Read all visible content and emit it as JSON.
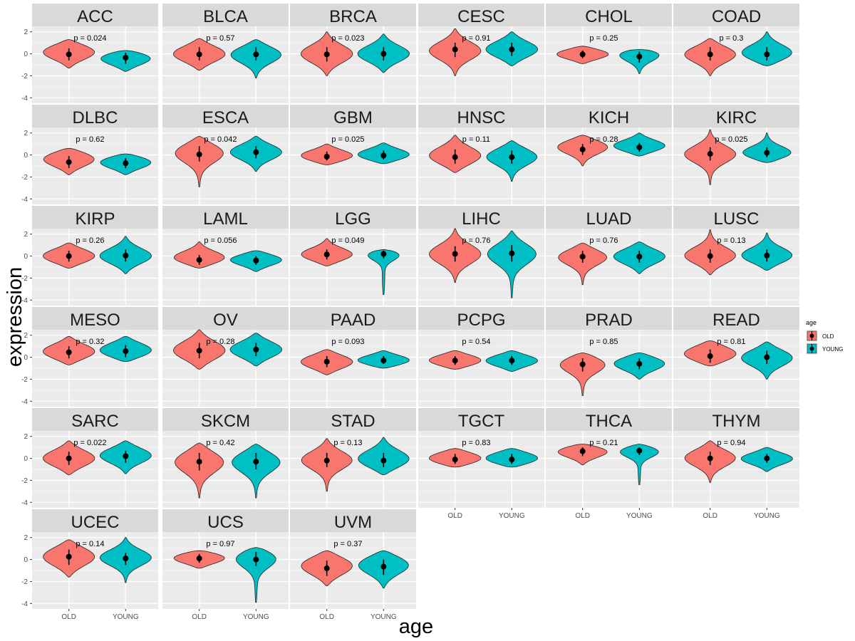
{
  "chart_data": {
    "type": "violin",
    "xlabel": "age",
    "ylabel": "expression",
    "groups": [
      "OLD",
      "YOUNG"
    ],
    "y_ticks": [
      2,
      0,
      -2,
      -4
    ],
    "y_tick_labels": [
      "2",
      "0",
      "-2",
      "-4"
    ],
    "ylim": [
      -4.5,
      2.5
    ],
    "grid": true,
    "legend": {
      "title": "age",
      "placement": "right",
      "entries": [
        {
          "label": "OLD",
          "color": "#F8766D"
        },
        {
          "label": "YOUNG",
          "color": "#00BFC4"
        }
      ]
    },
    "panels": [
      {
        "name": "ACC",
        "p": "p = 0.024",
        "old": {
          "min": -1.3,
          "max": 1.3,
          "med": -0.05,
          "q1": -0.6,
          "q3": 0.5,
          "peak": 0.2
        },
        "young": {
          "min": -1.6,
          "max": 0.3,
          "med": -0.35,
          "q1": -0.9,
          "q3": 0.1,
          "peak": -0.3
        }
      },
      {
        "name": "BLCA",
        "p": "p = 0.57",
        "old": {
          "min": -1.5,
          "max": 1.4,
          "med": -0.05,
          "q1": -0.6,
          "q3": 0.6,
          "peak": 0.0
        },
        "young": {
          "min": -2.2,
          "max": 1.3,
          "med": -0.05,
          "q1": -0.6,
          "q3": 0.6,
          "peak": 0.0
        }
      },
      {
        "name": "BRCA",
        "p": "p = 0.023",
        "old": {
          "min": -2.0,
          "max": 2.0,
          "med": -0.05,
          "q1": -0.7,
          "q3": 0.6,
          "peak": 0.0
        },
        "young": {
          "min": -1.7,
          "max": 1.8,
          "med": 0.0,
          "q1": -0.6,
          "q3": 0.6,
          "peak": 0.0
        }
      },
      {
        "name": "CESC",
        "p": "p = 0.91",
        "old": {
          "min": -2.0,
          "max": 2.3,
          "med": 0.4,
          "q1": -0.3,
          "q3": 1.0,
          "peak": 0.3
        },
        "young": {
          "min": -1.1,
          "max": 2.0,
          "med": 0.4,
          "q1": -0.2,
          "q3": 1.0,
          "peak": 0.4
        }
      },
      {
        "name": "CHOL",
        "p": "p = 0.25",
        "old": {
          "min": -0.9,
          "max": 0.7,
          "med": -0.05,
          "q1": -0.4,
          "q3": 0.3,
          "peak": 0.0
        },
        "young": {
          "min": -1.8,
          "max": 0.4,
          "med": -0.25,
          "q1": -0.8,
          "q3": 0.2,
          "peak": 0.2
        }
      },
      {
        "name": "COAD",
        "p": "p = 0.3",
        "old": {
          "min": -2.0,
          "max": 1.4,
          "med": -0.05,
          "q1": -0.6,
          "q3": 0.6,
          "peak": 0.0
        },
        "young": {
          "min": -1.1,
          "max": 2.0,
          "med": -0.05,
          "q1": -0.6,
          "q3": 0.6,
          "peak": 0.0
        }
      },
      {
        "name": "DLBC",
        "p": "p = 0.62",
        "old": {
          "min": -1.8,
          "max": 0.6,
          "med": -0.65,
          "q1": -1.2,
          "q3": -0.1,
          "peak": -0.3
        },
        "young": {
          "min": -1.8,
          "max": 0.1,
          "med": -0.75,
          "q1": -1.2,
          "q3": -0.3,
          "peak": -0.6
        }
      },
      {
        "name": "ESCA",
        "p": "p = 0.042",
        "old": {
          "min": -2.9,
          "max": 1.7,
          "med": 0.05,
          "q1": -0.6,
          "q3": 0.8,
          "peak": 0.3
        },
        "young": {
          "min": -1.5,
          "max": 1.7,
          "med": 0.25,
          "q1": -0.3,
          "q3": 0.8,
          "peak": 0.3
        }
      },
      {
        "name": "GBM",
        "p": "p = 0.025",
        "old": {
          "min": -0.9,
          "max": 1.0,
          "med": -0.15,
          "q1": -0.5,
          "q3": 0.3,
          "peak": -0.1
        },
        "young": {
          "min": -0.8,
          "max": 1.1,
          "med": -0.05,
          "q1": -0.4,
          "q3": 0.4,
          "peak": 0.0
        }
      },
      {
        "name": "HNSC",
        "p": "p = 0.11",
        "old": {
          "min": -1.6,
          "max": 1.8,
          "med": -0.2,
          "q1": -0.8,
          "q3": 0.5,
          "peak": -0.1
        },
        "young": {
          "min": -2.4,
          "max": 1.3,
          "med": -0.2,
          "q1": -0.8,
          "q3": 0.4,
          "peak": -0.1
        }
      },
      {
        "name": "KICH",
        "p": "p = 0.28",
        "old": {
          "min": -1.0,
          "max": 1.8,
          "med": 0.5,
          "q1": 0.0,
          "q3": 1.0,
          "peak": 0.8
        },
        "young": {
          "min": -0.1,
          "max": 2.0,
          "med": 0.7,
          "q1": 0.3,
          "q3": 1.1,
          "peak": 0.8
        }
      },
      {
        "name": "KIRC",
        "p": "p = 0.025",
        "old": {
          "min": -2.7,
          "max": 2.3,
          "med": 0.1,
          "q1": -0.5,
          "q3": 0.7,
          "peak": 0.1
        },
        "young": {
          "min": -0.7,
          "max": 2.0,
          "med": 0.2,
          "q1": -0.2,
          "q3": 0.7,
          "peak": 0.1
        }
      },
      {
        "name": "KIRP",
        "p": "p = 0.26",
        "old": {
          "min": -1.1,
          "max": 1.2,
          "med": 0.0,
          "q1": -0.5,
          "q3": 0.5,
          "peak": 0.0
        },
        "young": {
          "min": -1.6,
          "max": 1.8,
          "med": 0.05,
          "q1": -0.5,
          "q3": 0.6,
          "peak": 0.0
        }
      },
      {
        "name": "LAML",
        "p": "p = 0.056",
        "old": {
          "min": -1.1,
          "max": 1.3,
          "med": -0.35,
          "q1": -0.8,
          "q3": 0.1,
          "peak": -0.2
        },
        "young": {
          "min": -1.4,
          "max": 0.5,
          "med": -0.4,
          "q1": -0.8,
          "q3": 0.0,
          "peak": -0.3
        }
      },
      {
        "name": "LGG",
        "p": "p = 0.049",
        "old": {
          "min": -0.9,
          "max": 1.6,
          "med": 0.15,
          "q1": -0.3,
          "q3": 0.6,
          "peak": 0.1
        },
        "young": {
          "min": -3.5,
          "max": 0.6,
          "med": 0.2,
          "q1": -0.2,
          "q3": 0.5,
          "peak": 0.3
        }
      },
      {
        "name": "LIHC",
        "p": "p = 0.76",
        "old": {
          "min": -2.4,
          "max": 2.5,
          "med": 0.2,
          "q1": -0.5,
          "q3": 0.9,
          "peak": 0.2
        },
        "young": {
          "min": -3.8,
          "max": 2.3,
          "med": 0.25,
          "q1": -0.5,
          "q3": 1.0,
          "peak": 0.3
        }
      },
      {
        "name": "LUAD",
        "p": "p = 0.76",
        "old": {
          "min": -2.6,
          "max": 1.2,
          "med": -0.05,
          "q1": -0.6,
          "q3": 0.5,
          "peak": 0.0
        },
        "young": {
          "min": -1.6,
          "max": 1.3,
          "med": -0.05,
          "q1": -0.6,
          "q3": 0.5,
          "peak": 0.0
        }
      },
      {
        "name": "LUSC",
        "p": "p = 0.13",
        "old": {
          "min": -1.7,
          "max": 2.4,
          "med": 0.0,
          "q1": -0.6,
          "q3": 0.6,
          "peak": 0.0
        },
        "young": {
          "min": -1.3,
          "max": 2.1,
          "med": 0.05,
          "q1": -0.5,
          "q3": 0.6,
          "peak": 0.0
        }
      },
      {
        "name": "MESO",
        "p": "p = 0.32",
        "old": {
          "min": -0.7,
          "max": 1.9,
          "med": 0.45,
          "q1": -0.1,
          "q3": 1.0,
          "peak": 0.5
        },
        "young": {
          "min": -0.4,
          "max": 1.9,
          "med": 0.55,
          "q1": 0.0,
          "q3": 1.1,
          "peak": 0.6
        }
      },
      {
        "name": "OV",
        "p": "p = 0.28",
        "old": {
          "min": -1.1,
          "max": 2.5,
          "med": 0.6,
          "q1": -0.1,
          "q3": 1.3,
          "peak": 0.6
        },
        "young": {
          "min": -0.8,
          "max": 2.2,
          "med": 0.7,
          "q1": 0.1,
          "q3": 1.3,
          "peak": 0.7
        }
      },
      {
        "name": "PAAD",
        "p": "p = 0.093",
        "old": {
          "min": -1.6,
          "max": 0.7,
          "med": -0.4,
          "q1": -0.9,
          "q3": 0.1,
          "peak": -0.4
        },
        "young": {
          "min": -1.0,
          "max": 0.6,
          "med": -0.3,
          "q1": -0.6,
          "q3": 0.1,
          "peak": -0.3
        }
      },
      {
        "name": "PCPG",
        "p": "p = 0.54",
        "old": {
          "min": -1.1,
          "max": 0.6,
          "med": -0.3,
          "q1": -0.7,
          "q3": 0.1,
          "peak": -0.3
        },
        "young": {
          "min": -1.3,
          "max": 0.6,
          "med": -0.3,
          "q1": -0.7,
          "q3": 0.1,
          "peak": -0.3
        }
      },
      {
        "name": "PRAD",
        "p": "p = 0.85",
        "old": {
          "min": -3.5,
          "max": 0.4,
          "med": -0.65,
          "q1": -1.3,
          "q3": -0.1,
          "peak": -0.5
        },
        "young": {
          "min": -2.0,
          "max": 0.4,
          "med": -0.6,
          "q1": -1.1,
          "q3": -0.1,
          "peak": -0.5
        }
      },
      {
        "name": "READ",
        "p": "p = 0.81",
        "old": {
          "min": -0.8,
          "max": 1.5,
          "med": 0.1,
          "q1": -0.5,
          "q3": 0.7,
          "peak": 0.3
        },
        "young": {
          "min": -2.0,
          "max": 1.4,
          "med": 0.0,
          "q1": -0.6,
          "q3": 0.6,
          "peak": 0.0
        }
      },
      {
        "name": "SARC",
        "p": "p = 0.022",
        "old": {
          "min": -1.5,
          "max": 1.6,
          "med": 0.0,
          "q1": -0.6,
          "q3": 0.6,
          "peak": 0.0
        },
        "young": {
          "min": -1.4,
          "max": 1.6,
          "med": 0.2,
          "q1": -0.4,
          "q3": 0.7,
          "peak": 0.3
        }
      },
      {
        "name": "SKCM",
        "p": "p = 0.42",
        "old": {
          "min": -3.6,
          "max": 1.4,
          "med": -0.3,
          "q1": -1.1,
          "q3": 0.5,
          "peak": -0.2
        },
        "young": {
          "min": -3.6,
          "max": 1.3,
          "med": -0.3,
          "q1": -1.0,
          "q3": 0.5,
          "peak": -0.2
        }
      },
      {
        "name": "STAD",
        "p": "p = 0.13",
        "old": {
          "min": -3.0,
          "max": 1.8,
          "med": -0.2,
          "q1": -0.8,
          "q3": 0.5,
          "peak": -0.1
        },
        "young": {
          "min": -1.5,
          "max": 1.9,
          "med": -0.2,
          "q1": -0.8,
          "q3": 0.5,
          "peak": -0.1
        }
      },
      {
        "name": "TGCT",
        "p": "p = 0.83",
        "old": {
          "min": -0.8,
          "max": 0.9,
          "med": -0.1,
          "q1": -0.5,
          "q3": 0.4,
          "peak": 0.0
        },
        "young": {
          "min": -0.8,
          "max": 0.9,
          "med": -0.1,
          "q1": -0.5,
          "q3": 0.4,
          "peak": 0.0
        }
      },
      {
        "name": "THCA",
        "p": "p = 0.21",
        "old": {
          "min": -0.6,
          "max": 1.3,
          "med": 0.65,
          "q1": 0.2,
          "q3": 1.0,
          "peak": 0.7
        },
        "young": {
          "min": -2.4,
          "max": 1.3,
          "med": 0.7,
          "q1": 0.3,
          "q3": 1.0,
          "peak": 0.75
        }
      },
      {
        "name": "THYM",
        "p": "p = 0.94",
        "old": {
          "min": -2.2,
          "max": 1.6,
          "med": 0.0,
          "q1": -0.6,
          "q3": 0.6,
          "peak": 0.1
        },
        "young": {
          "min": -1.2,
          "max": 1.0,
          "med": 0.0,
          "q1": -0.4,
          "q3": 0.4,
          "peak": 0.0
        }
      },
      {
        "name": "UCEC",
        "p": "p = 0.14",
        "old": {
          "min": -1.6,
          "max": 1.8,
          "med": 0.25,
          "q1": -0.5,
          "q3": 0.9,
          "peak": 0.3
        },
        "young": {
          "min": -2.1,
          "max": 2.0,
          "med": 0.1,
          "q1": -0.5,
          "q3": 0.6,
          "peak": 0.2
        }
      },
      {
        "name": "UCS",
        "p": "p = 0.97",
        "old": {
          "min": -0.8,
          "max": 0.8,
          "med": 0.1,
          "q1": -0.3,
          "q3": 0.5,
          "peak": 0.2
        },
        "young": {
          "min": -3.9,
          "max": 1.1,
          "med": 0.0,
          "q1": -0.6,
          "q3": 0.7,
          "peak": 0.3
        }
      },
      {
        "name": "UVM",
        "p": "p = 0.37",
        "old": {
          "min": -2.4,
          "max": 0.8,
          "med": -0.8,
          "q1": -1.5,
          "q3": -0.1,
          "peak": -0.5
        },
        "young": {
          "min": -2.6,
          "max": 0.8,
          "med": -0.65,
          "q1": -1.4,
          "q3": 0.0,
          "peak": -0.4
        }
      }
    ]
  }
}
